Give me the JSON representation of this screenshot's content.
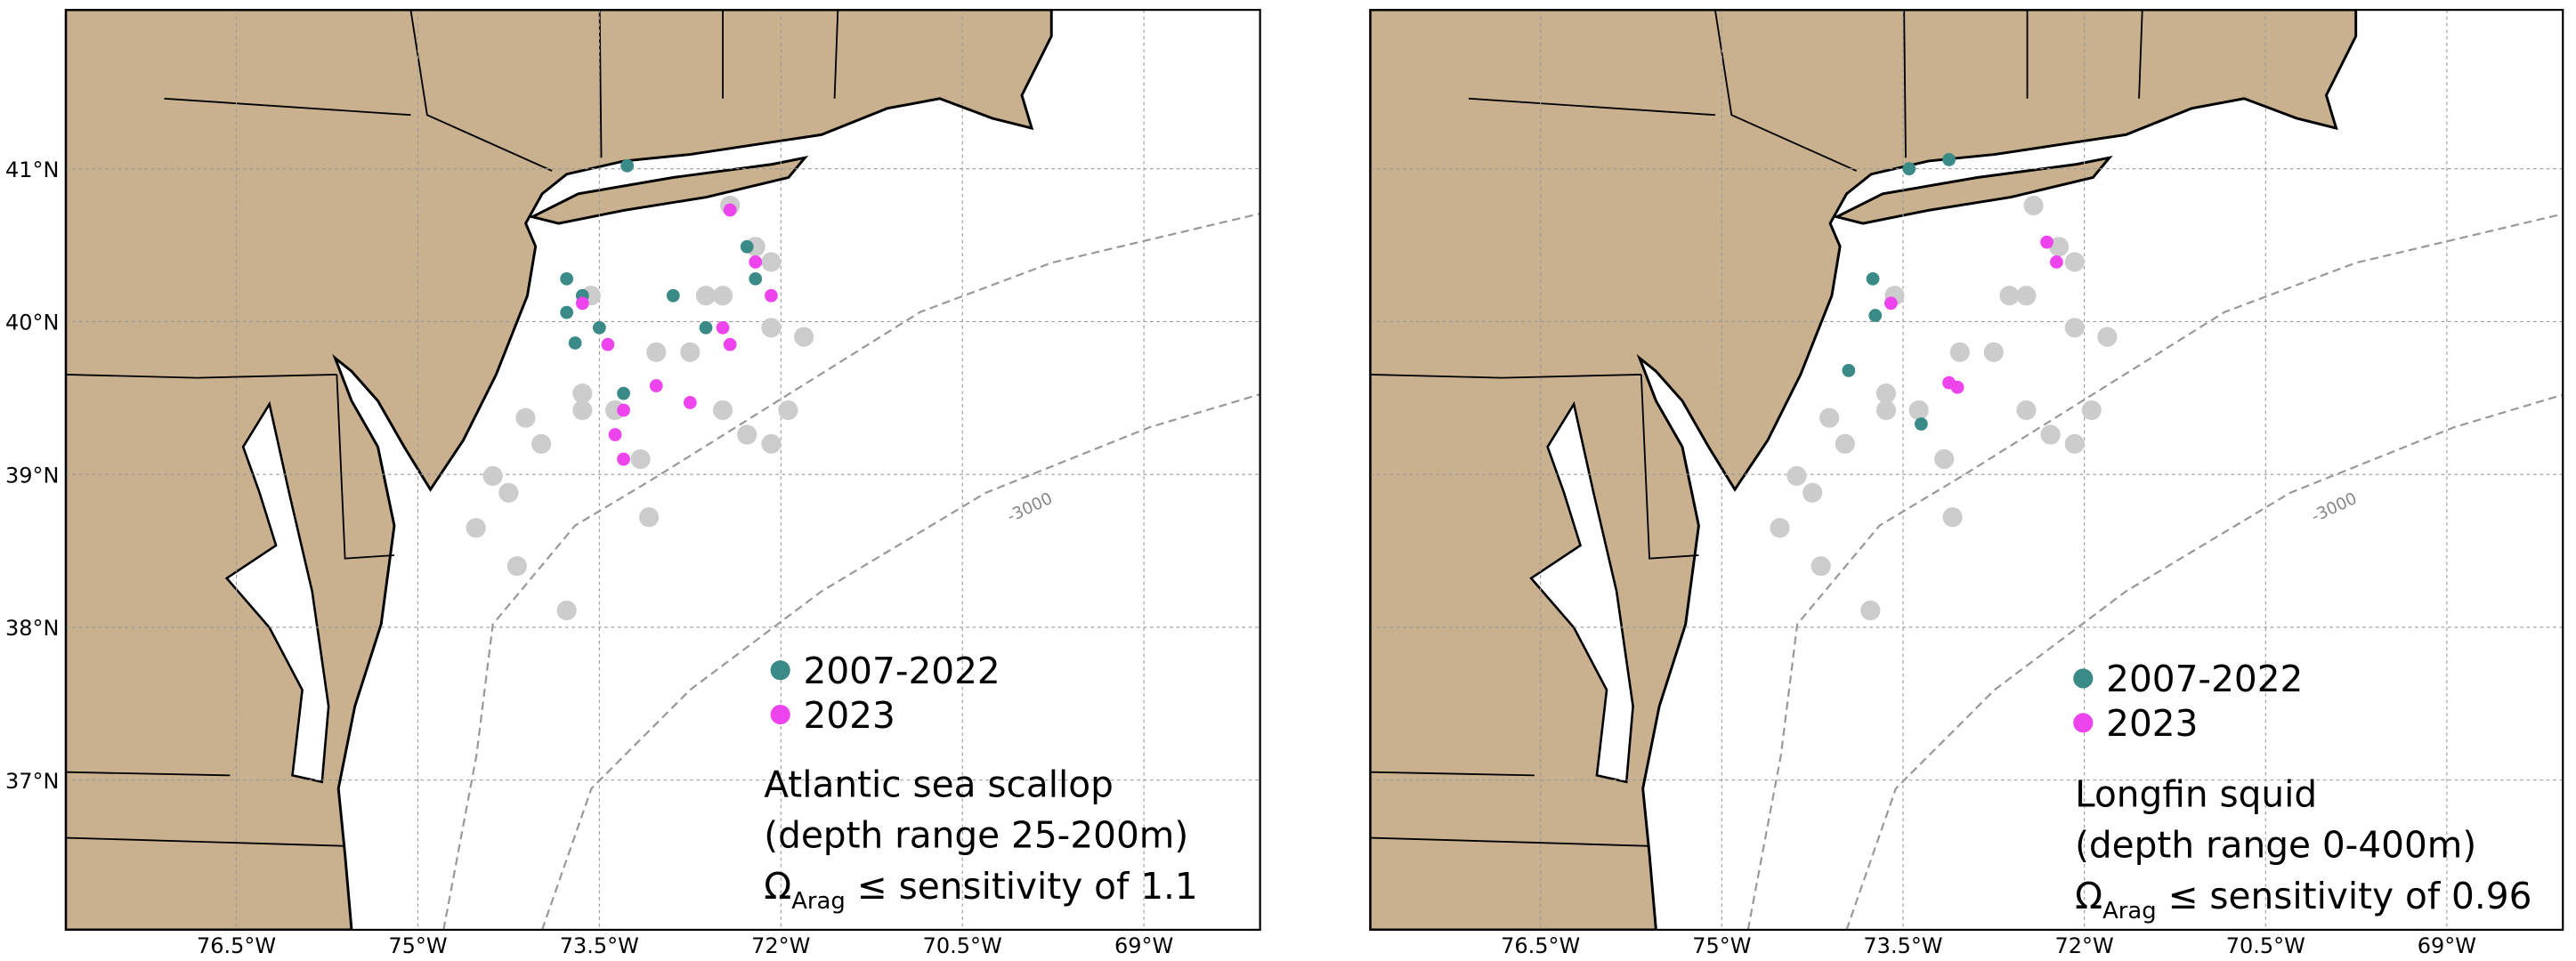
{
  "panels": [
    {
      "xlim": [
        -77.91,
        -68.04
      ],
      "ylim": [
        36.02,
        42.04
      ],
      "xticks": [
        {
          "value": -76.5,
          "label": "76.5°W"
        },
        {
          "value": -75,
          "label": "75°W"
        },
        {
          "value": -73.5,
          "label": "73.5°W"
        },
        {
          "value": -72,
          "label": "72°W"
        },
        {
          "value": -70.5,
          "label": "70.5°W"
        },
        {
          "value": -69,
          "label": "69°W"
        }
      ],
      "yticks": [
        {
          "value": 37,
          "label": "37°N"
        },
        {
          "value": 38,
          "label": "38°N"
        },
        {
          "value": 39,
          "label": "39°N"
        },
        {
          "value": 40,
          "label": "40°N"
        },
        {
          "value": 41,
          "label": "41°N"
        }
      ],
      "contour_label": "-3000",
      "series": [
        {
          "color": "#cccccc",
          "lon": [
            -73.77,
            -74.18,
            -74.52,
            -74.38,
            -74.11,
            -73.64,
            -73.37,
            -73.16,
            -73.09,
            -74.25,
            -73.98,
            -73.64,
            -73.57,
            -73.03,
            -72.48,
            -72.28,
            -72.75,
            -72.48,
            -72.08,
            -71.94,
            -72.08,
            -72.62,
            -72.08,
            -71.81,
            -72.21,
            -72.42
          ],
          "lat": [
            38.11,
            38.4,
            38.65,
            38.99,
            39.37,
            39.42,
            39.42,
            39.1,
            38.72,
            38.88,
            39.2,
            39.53,
            40.17,
            39.8,
            39.42,
            39.26,
            39.8,
            40.17,
            39.96,
            39.42,
            39.2,
            40.17,
            40.39,
            39.9,
            40.49,
            40.76
          ]
        },
        {
          "name": "2007-2022",
          "color": "#3a8a87",
          "lon": [
            -73.27,
            -73.77,
            -73.77,
            -73.7,
            -73.5,
            -73.3,
            -72.89,
            -72.62,
            -72.28,
            -72.21,
            -73.64
          ],
          "lat": [
            41.02,
            40.28,
            40.06,
            39.86,
            39.96,
            39.53,
            40.17,
            39.96,
            40.49,
            40.28,
            40.17
          ]
        },
        {
          "name": "2023",
          "color": "#ee44ee",
          "lon": [
            -72.42,
            -72.21,
            -72.08,
            -72.48,
            -72.42,
            -73.64,
            -73.43,
            -73.03,
            -72.75,
            -73.3,
            -73.37,
            -73.3
          ],
          "lat": [
            40.73,
            40.39,
            40.17,
            39.96,
            39.85,
            40.12,
            39.85,
            39.58,
            39.47,
            39.42,
            39.26,
            39.1
          ]
        }
      ],
      "species": "Atlantic sea scallop",
      "depth": "(depth range 25-200m)",
      "omega": {
        "symbol": "Ω",
        "subscript": "Arag",
        "text": " ≤ sensitivity of 1.1"
      }
    },
    {
      "xlim": [
        -77.91,
        -68.04
      ],
      "ylim": [
        36.02,
        42.04
      ],
      "xticks": [
        {
          "value": -76.5,
          "label": "76.5°W"
        },
        {
          "value": -75,
          "label": "75°W"
        },
        {
          "value": -73.5,
          "label": "73.5°W"
        },
        {
          "value": -72,
          "label": "72°W"
        },
        {
          "value": -70.5,
          "label": "70.5°W"
        },
        {
          "value": -69,
          "label": "69°W"
        }
      ],
      "ygrid": [
        37,
        38,
        39,
        40,
        41
      ],
      "contour_label": "-3000",
      "series": [
        {
          "color": "#cccccc",
          "lon": [
            -73.77,
            -74.18,
            -74.52,
            -74.38,
            -74.11,
            -73.64,
            -73.37,
            -73.16,
            -73.09,
            -74.25,
            -73.98,
            -73.64,
            -73.57,
            -73.03,
            -72.48,
            -72.28,
            -72.75,
            -72.48,
            -72.08,
            -71.94,
            -72.08,
            -72.62,
            -72.08,
            -71.81,
            -72.21,
            -72.42
          ],
          "lat": [
            38.11,
            38.4,
            38.65,
            38.99,
            39.37,
            39.42,
            39.42,
            39.1,
            38.72,
            38.88,
            39.2,
            39.53,
            40.17,
            39.8,
            39.42,
            39.26,
            39.8,
            40.17,
            39.96,
            39.42,
            39.2,
            40.17,
            40.39,
            39.9,
            40.49,
            40.76
          ]
        },
        {
          "name": "2007-2022",
          "color": "#3a8a87",
          "lon": [
            -73.45,
            -73.12,
            -73.75,
            -73.73,
            -73.95,
            -73.35
          ],
          "lat": [
            41.0,
            41.06,
            40.28,
            40.04,
            39.68,
            39.33
          ]
        },
        {
          "name": "2023",
          "color": "#ee44ee",
          "lon": [
            -73.6,
            -73.12,
            -73.05,
            -72.31,
            -72.23
          ],
          "lat": [
            40.12,
            39.6,
            39.57,
            40.52,
            40.39
          ]
        }
      ],
      "species": "Longfin squid",
      "depth": "(depth range 0-400m)",
      "omega": {
        "symbol": "Ω",
        "subscript": "Arag",
        "text": " ≤ sensitivity of 0.96"
      }
    }
  ]
}
